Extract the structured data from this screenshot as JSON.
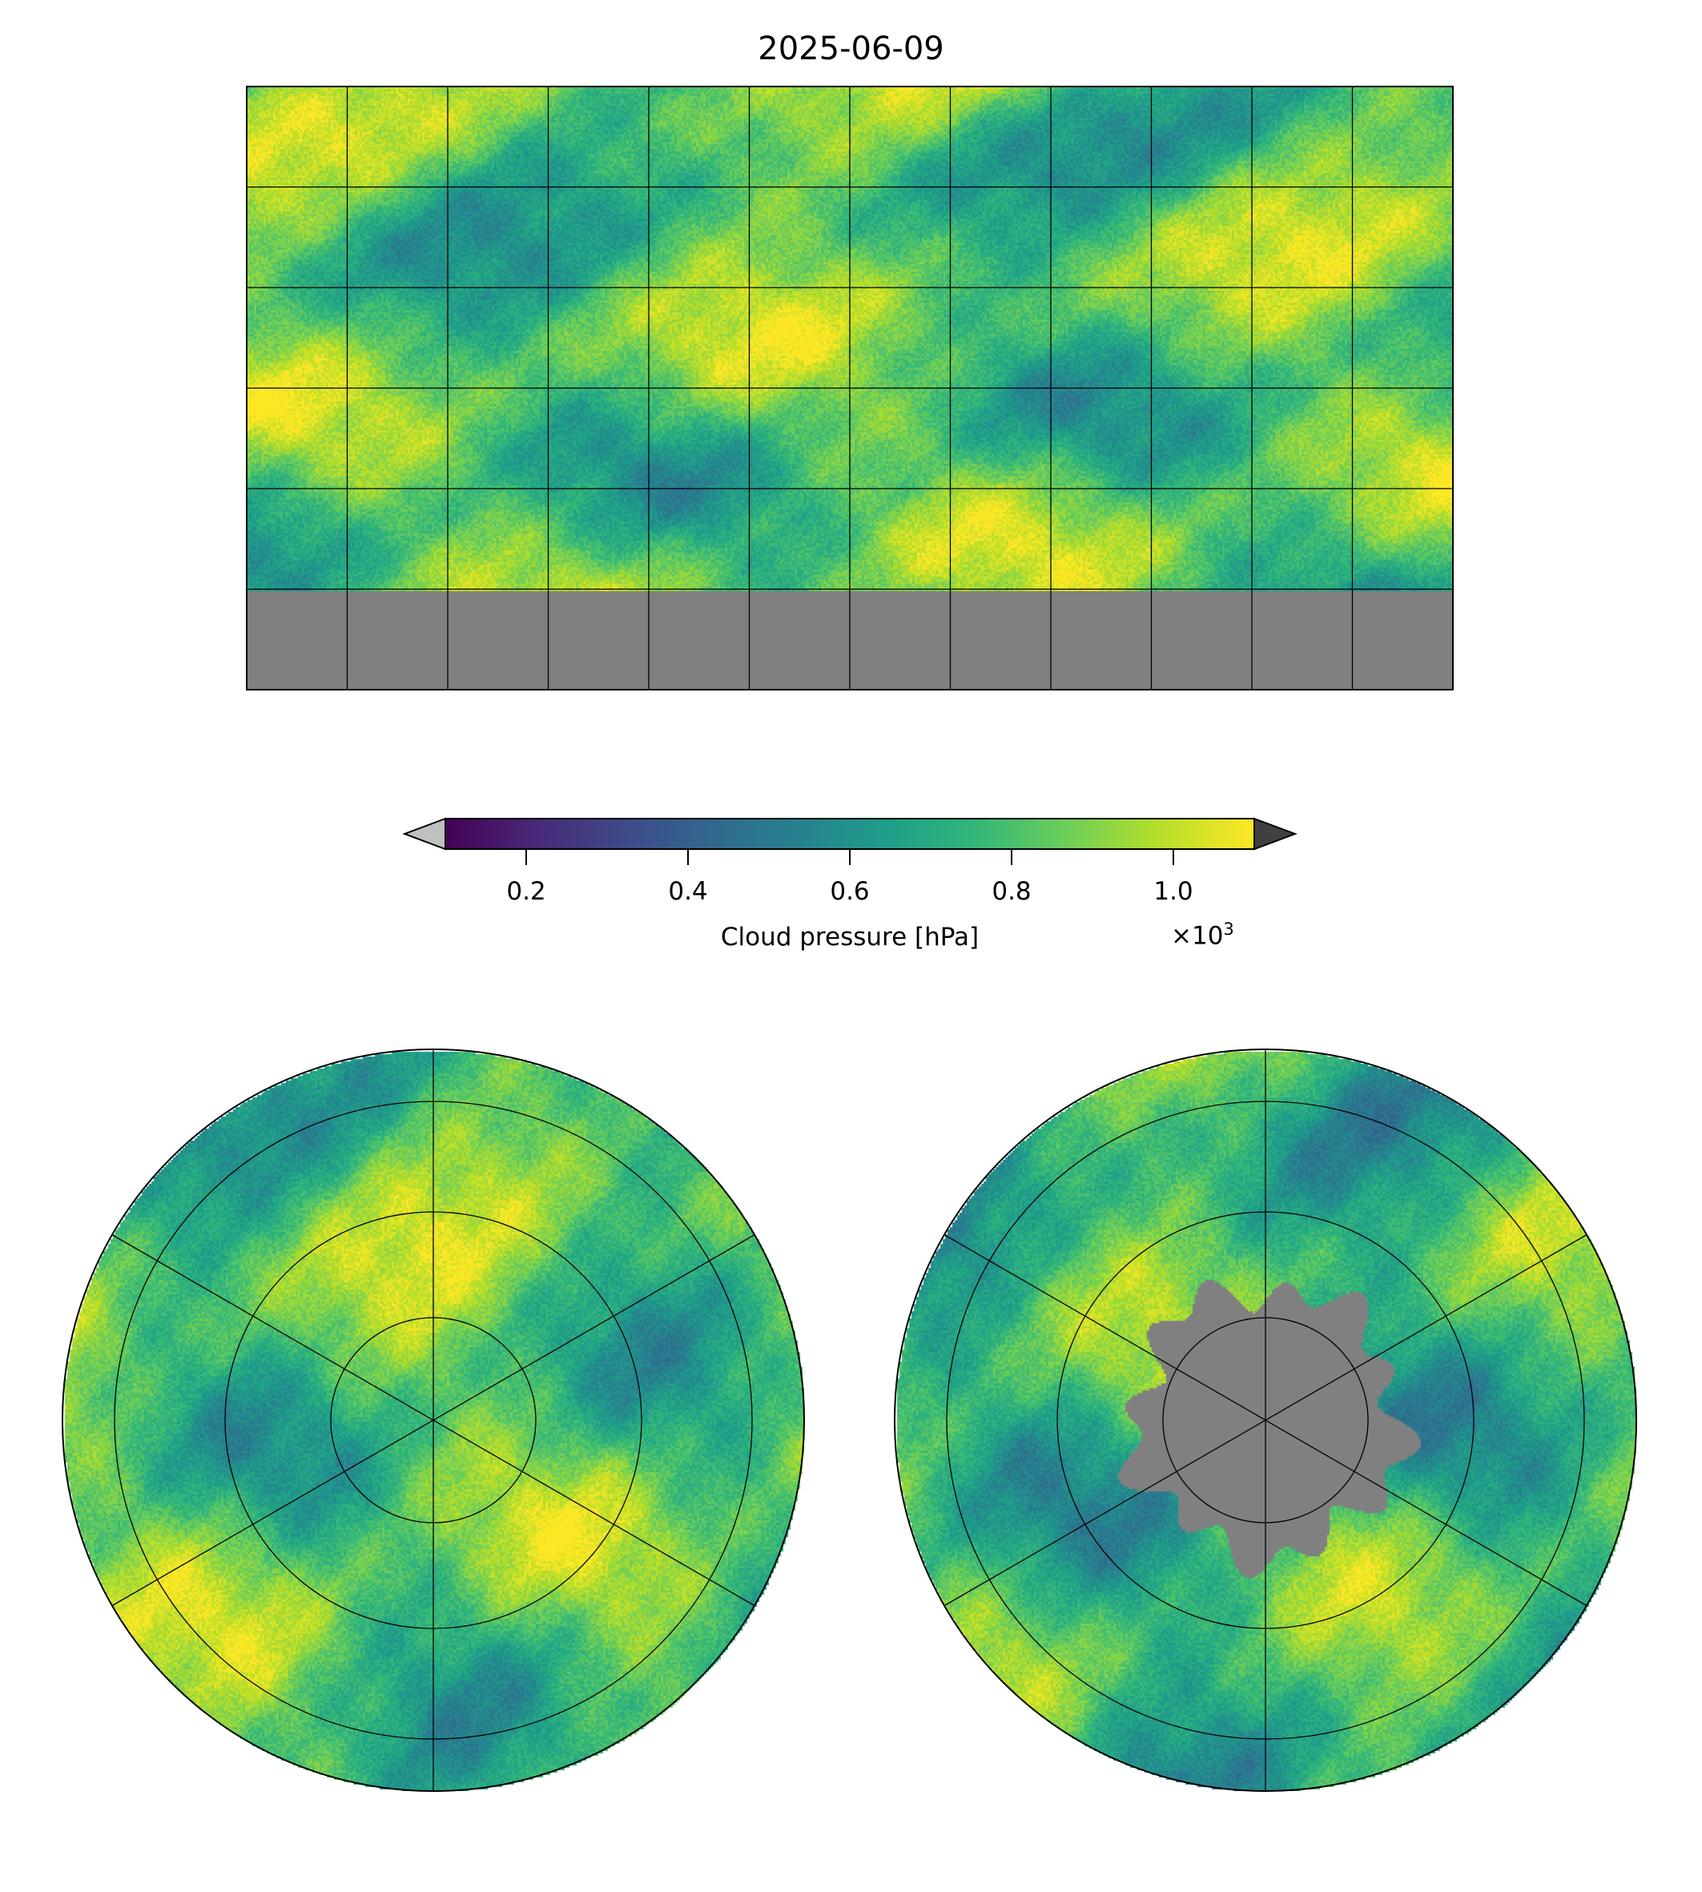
{
  "title": "2025-06-09",
  "chart_data": {
    "type": "heatmap",
    "title": "2025-06-09",
    "panels": [
      {
        "name": "global",
        "projection": "PlateCarree",
        "lon_range": [
          -180,
          180
        ],
        "lat_range": [
          -90,
          90
        ],
        "gridline_spacing_deg": 30,
        "no_data_region": "south of 60S (gray)"
      },
      {
        "name": "north-polar",
        "projection": "NorthPolarStereo",
        "meridians_deg": [
          0,
          60,
          120,
          180,
          240,
          300
        ]
      },
      {
        "name": "south-polar",
        "projection": "SouthPolarStereo",
        "meridians_deg": [
          0,
          60,
          120,
          180,
          240,
          300
        ],
        "no_data_region": "Antarctic cap (gray)"
      }
    ],
    "colorbar": {
      "label": "Cloud pressure [hPa]",
      "multiplier": "×10",
      "multiplier_exp": "3",
      "colormap": "viridis",
      "range": [
        0.1,
        1.1
      ],
      "ticks": [
        0.2,
        0.4,
        0.6,
        0.8,
        1.0
      ],
      "tick_labels": [
        "0.2",
        "0.4",
        "0.6",
        "0.8",
        "1.0"
      ],
      "extend": "both",
      "under_color": "#c0c0c0",
      "over_color": "#404040",
      "nodata_color": "#808080"
    }
  }
}
